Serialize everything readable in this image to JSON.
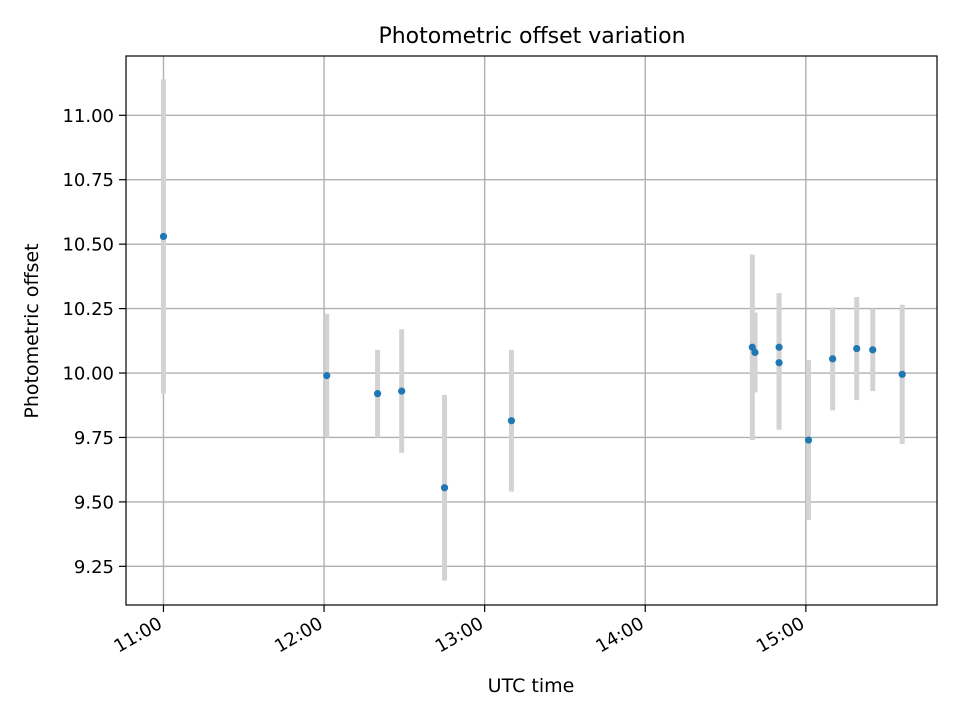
{
  "chart_data": {
    "type": "scatter",
    "title": "Photometric offset variation",
    "xlabel": "UTC time",
    "ylabel": "Photometric offset",
    "xlim": [
      "10:46",
      "15:49"
    ],
    "ylim": [
      9.1,
      11.23
    ],
    "xticks": [
      "11:00",
      "12:00",
      "13:00",
      "14:00",
      "15:00"
    ],
    "yticks": [
      "9.25",
      "9.50",
      "9.75",
      "10.00",
      "10.25",
      "10.50",
      "10.75",
      "11.00"
    ],
    "grid": true,
    "colors": {
      "marker": "#1f77b4",
      "errorbar": "#d3d3d3",
      "grid": "#b0b0b0"
    },
    "points": [
      {
        "x": "11:00",
        "y": 10.53,
        "err": 0.61
      },
      {
        "x": "12:01",
        "y": 9.99,
        "err": 0.24
      },
      {
        "x": "12:20",
        "y": 9.92,
        "err": 0.17
      },
      {
        "x": "12:29",
        "y": 9.93,
        "err": 0.24
      },
      {
        "x": "12:45",
        "y": 9.555,
        "err": 0.36
      },
      {
        "x": "13:10",
        "y": 9.815,
        "err": 0.275
      },
      {
        "x": "14:40",
        "y": 10.1,
        "err": 0.36
      },
      {
        "x": "14:41",
        "y": 10.08,
        "err": 0.155
      },
      {
        "x": "14:50",
        "y": 10.1,
        "err": 0.21
      },
      {
        "x": "14:50",
        "y": 10.04,
        "err": 0.26
      },
      {
        "x": "15:01",
        "y": 9.74,
        "err": 0.31
      },
      {
        "x": "15:10",
        "y": 10.055,
        "err": 0.2
      },
      {
        "x": "15:19",
        "y": 10.095,
        "err": 0.2
      },
      {
        "x": "15:25",
        "y": 10.09,
        "err": 0.16
      },
      {
        "x": "15:36",
        "y": 9.995,
        "err": 0.27
      }
    ]
  }
}
